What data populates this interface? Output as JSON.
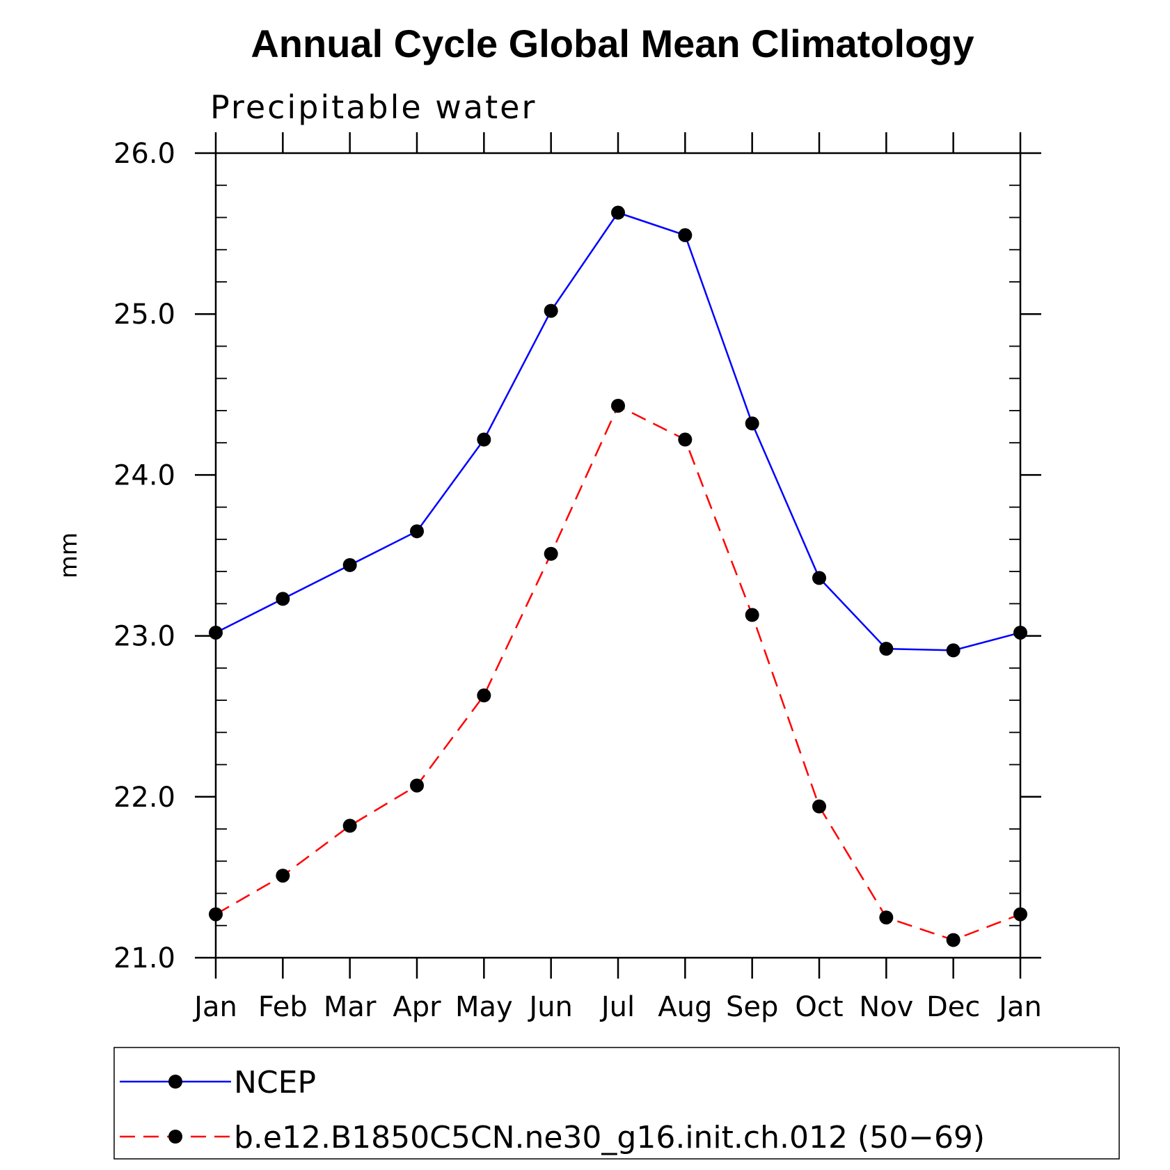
{
  "chart_data": {
    "type": "line",
    "title": "Annual Cycle Global Mean Climatology",
    "subtitle": "Precipitable water",
    "ylabel": "mm",
    "xlabel": "",
    "categories": [
      "Jan",
      "Feb",
      "Mar",
      "Apr",
      "May",
      "Jun",
      "Jul",
      "Aug",
      "Sep",
      "Oct",
      "Nov",
      "Dec",
      "Jan"
    ],
    "ylim": [
      21.0,
      26.0
    ],
    "yticks": [
      "21.0",
      "22.0",
      "23.0",
      "24.0",
      "25.0",
      "26.0"
    ],
    "grid": false,
    "legend_position": "bottom",
    "series": [
      {
        "name": "NCEP",
        "color": "#0000ff",
        "dash": "solid",
        "marker": "filled-circle",
        "values": [
          23.02,
          23.23,
          23.44,
          23.65,
          24.22,
          25.02,
          25.63,
          25.49,
          24.32,
          23.36,
          22.92,
          22.91,
          23.02
        ]
      },
      {
        "name": "b.e12.B1850C5CN.ne30_g16.init.ch.012 (50−69)",
        "color": "#ff0000",
        "dash": "dashed",
        "marker": "filled-circle",
        "values": [
          21.27,
          21.51,
          21.82,
          22.07,
          22.63,
          23.51,
          24.43,
          24.22,
          23.13,
          21.94,
          21.25,
          21.11,
          21.27
        ]
      }
    ]
  }
}
